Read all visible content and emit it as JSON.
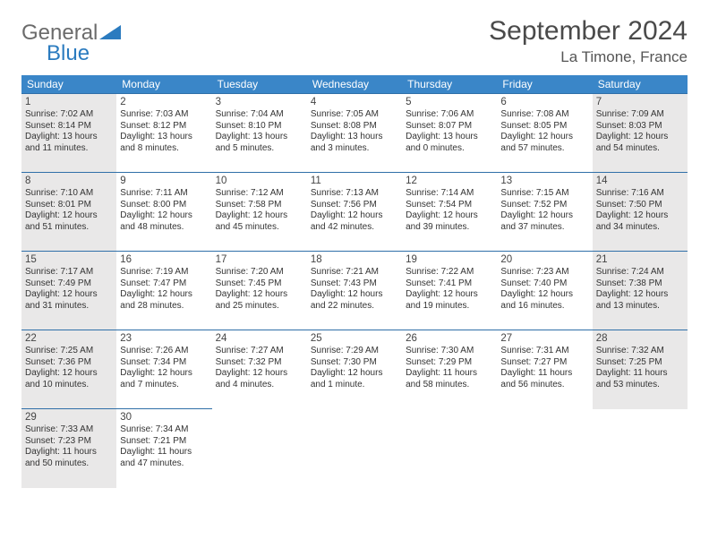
{
  "brand": {
    "word1": "General",
    "word2": "Blue"
  },
  "title": "September 2024",
  "location": "La Timone, France",
  "colors": {
    "header_bg": "#3a86c8",
    "header_text": "#ffffff",
    "row_divider": "#2f6fa8",
    "shade_bg": "#e9e8e8",
    "logo_gray": "#6b6b6b",
    "logo_blue": "#2b7bbf"
  },
  "weekdays": [
    "Sunday",
    "Monday",
    "Tuesday",
    "Wednesday",
    "Thursday",
    "Friday",
    "Saturday"
  ],
  "weeks": [
    [
      {
        "day": "1",
        "shade": true,
        "sunrise": "7:02 AM",
        "sunset": "8:14 PM",
        "daylight": "13 hours and 11 minutes."
      },
      {
        "day": "2",
        "shade": false,
        "sunrise": "7:03 AM",
        "sunset": "8:12 PM",
        "daylight": "13 hours and 8 minutes."
      },
      {
        "day": "3",
        "shade": false,
        "sunrise": "7:04 AM",
        "sunset": "8:10 PM",
        "daylight": "13 hours and 5 minutes."
      },
      {
        "day": "4",
        "shade": false,
        "sunrise": "7:05 AM",
        "sunset": "8:08 PM",
        "daylight": "13 hours and 3 minutes."
      },
      {
        "day": "5",
        "shade": false,
        "sunrise": "7:06 AM",
        "sunset": "8:07 PM",
        "daylight": "13 hours and 0 minutes."
      },
      {
        "day": "6",
        "shade": false,
        "sunrise": "7:08 AM",
        "sunset": "8:05 PM",
        "daylight": "12 hours and 57 minutes."
      },
      {
        "day": "7",
        "shade": true,
        "sunrise": "7:09 AM",
        "sunset": "8:03 PM",
        "daylight": "12 hours and 54 minutes."
      }
    ],
    [
      {
        "day": "8",
        "shade": true,
        "sunrise": "7:10 AM",
        "sunset": "8:01 PM",
        "daylight": "12 hours and 51 minutes."
      },
      {
        "day": "9",
        "shade": false,
        "sunrise": "7:11 AM",
        "sunset": "8:00 PM",
        "daylight": "12 hours and 48 minutes."
      },
      {
        "day": "10",
        "shade": false,
        "sunrise": "7:12 AM",
        "sunset": "7:58 PM",
        "daylight": "12 hours and 45 minutes."
      },
      {
        "day": "11",
        "shade": false,
        "sunrise": "7:13 AM",
        "sunset": "7:56 PM",
        "daylight": "12 hours and 42 minutes."
      },
      {
        "day": "12",
        "shade": false,
        "sunrise": "7:14 AM",
        "sunset": "7:54 PM",
        "daylight": "12 hours and 39 minutes."
      },
      {
        "day": "13",
        "shade": false,
        "sunrise": "7:15 AM",
        "sunset": "7:52 PM",
        "daylight": "12 hours and 37 minutes."
      },
      {
        "day": "14",
        "shade": true,
        "sunrise": "7:16 AM",
        "sunset": "7:50 PM",
        "daylight": "12 hours and 34 minutes."
      }
    ],
    [
      {
        "day": "15",
        "shade": true,
        "sunrise": "7:17 AM",
        "sunset": "7:49 PM",
        "daylight": "12 hours and 31 minutes."
      },
      {
        "day": "16",
        "shade": false,
        "sunrise": "7:19 AM",
        "sunset": "7:47 PM",
        "daylight": "12 hours and 28 minutes."
      },
      {
        "day": "17",
        "shade": false,
        "sunrise": "7:20 AM",
        "sunset": "7:45 PM",
        "daylight": "12 hours and 25 minutes."
      },
      {
        "day": "18",
        "shade": false,
        "sunrise": "7:21 AM",
        "sunset": "7:43 PM",
        "daylight": "12 hours and 22 minutes."
      },
      {
        "day": "19",
        "shade": false,
        "sunrise": "7:22 AM",
        "sunset": "7:41 PM",
        "daylight": "12 hours and 19 minutes."
      },
      {
        "day": "20",
        "shade": false,
        "sunrise": "7:23 AM",
        "sunset": "7:40 PM",
        "daylight": "12 hours and 16 minutes."
      },
      {
        "day": "21",
        "shade": true,
        "sunrise": "7:24 AM",
        "sunset": "7:38 PM",
        "daylight": "12 hours and 13 minutes."
      }
    ],
    [
      {
        "day": "22",
        "shade": true,
        "sunrise": "7:25 AM",
        "sunset": "7:36 PM",
        "daylight": "12 hours and 10 minutes."
      },
      {
        "day": "23",
        "shade": false,
        "sunrise": "7:26 AM",
        "sunset": "7:34 PM",
        "daylight": "12 hours and 7 minutes."
      },
      {
        "day": "24",
        "shade": false,
        "sunrise": "7:27 AM",
        "sunset": "7:32 PM",
        "daylight": "12 hours and 4 minutes."
      },
      {
        "day": "25",
        "shade": false,
        "sunrise": "7:29 AM",
        "sunset": "7:30 PM",
        "daylight": "12 hours and 1 minute."
      },
      {
        "day": "26",
        "shade": false,
        "sunrise": "7:30 AM",
        "sunset": "7:29 PM",
        "daylight": "11 hours and 58 minutes."
      },
      {
        "day": "27",
        "shade": false,
        "sunrise": "7:31 AM",
        "sunset": "7:27 PM",
        "daylight": "11 hours and 56 minutes."
      },
      {
        "day": "28",
        "shade": true,
        "sunrise": "7:32 AM",
        "sunset": "7:25 PM",
        "daylight": "11 hours and 53 minutes."
      }
    ],
    [
      {
        "day": "29",
        "shade": true,
        "sunrise": "7:33 AM",
        "sunset": "7:23 PM",
        "daylight": "11 hours and 50 minutes."
      },
      {
        "day": "30",
        "shade": false,
        "sunrise": "7:34 AM",
        "sunset": "7:21 PM",
        "daylight": "11 hours and 47 minutes."
      },
      null,
      null,
      null,
      null,
      null
    ]
  ],
  "labels": {
    "sunrise": "Sunrise:",
    "sunset": "Sunset:",
    "daylight": "Daylight:"
  }
}
